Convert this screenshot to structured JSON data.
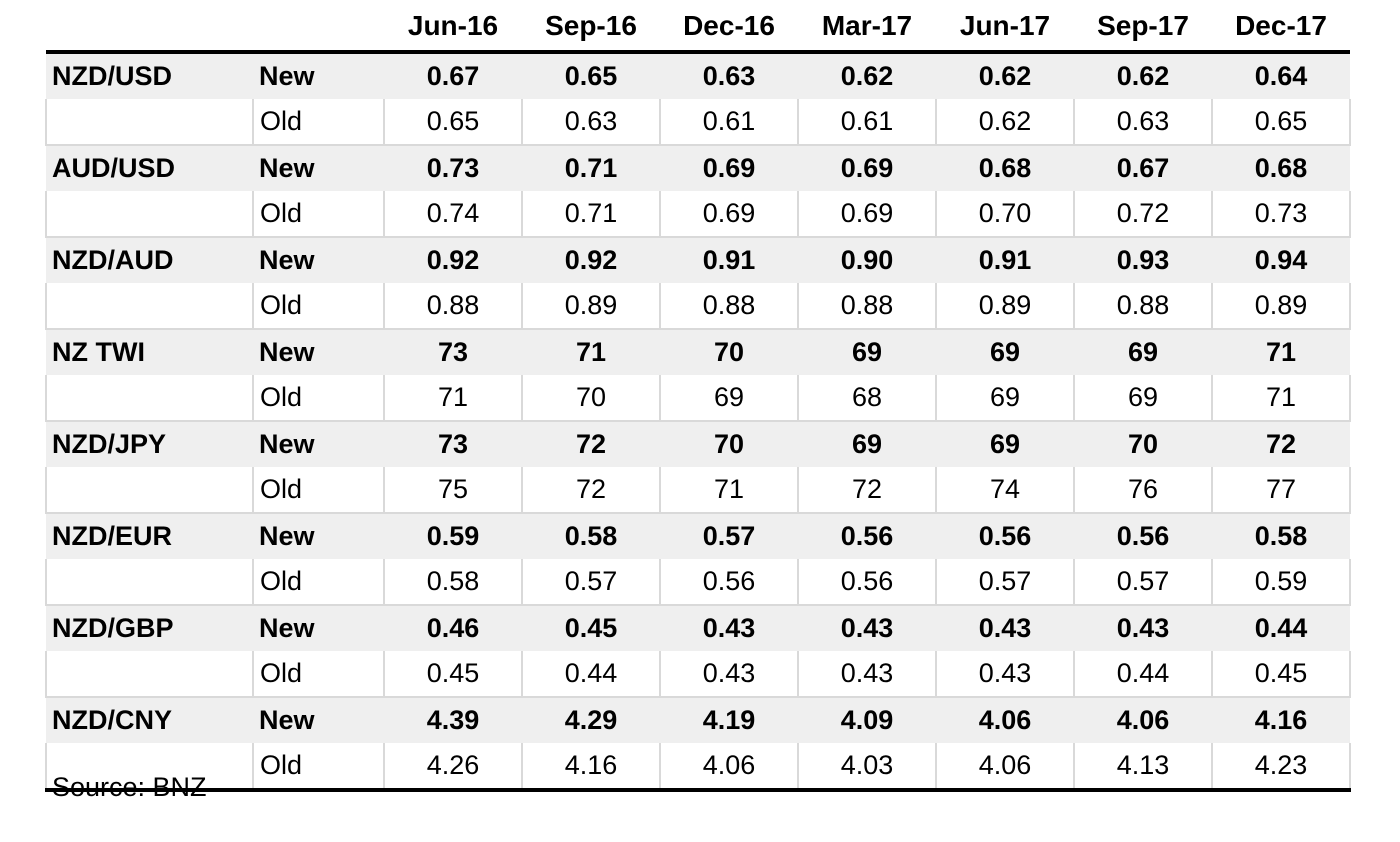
{
  "chart_data": {
    "type": "table",
    "title": "",
    "columns": [
      "Jun-16",
      "Sep-16",
      "Dec-16",
      "Mar-17",
      "Jun-17",
      "Sep-17",
      "Dec-17"
    ],
    "row_type_labels": {
      "new": "New",
      "old": "Old"
    },
    "row_groups": [
      {
        "label": "NZD/USD",
        "new": [
          "0.67",
          "0.65",
          "0.63",
          "0.62",
          "0.62",
          "0.62",
          "0.64"
        ],
        "old": [
          "0.65",
          "0.63",
          "0.61",
          "0.61",
          "0.62",
          "0.63",
          "0.65"
        ]
      },
      {
        "label": "AUD/USD",
        "new": [
          "0.73",
          "0.71",
          "0.69",
          "0.69",
          "0.68",
          "0.67",
          "0.68"
        ],
        "old": [
          "0.74",
          "0.71",
          "0.69",
          "0.69",
          "0.70",
          "0.72",
          "0.73"
        ]
      },
      {
        "label": "NZD/AUD",
        "new": [
          "0.92",
          "0.92",
          "0.91",
          "0.90",
          "0.91",
          "0.93",
          "0.94"
        ],
        "old": [
          "0.88",
          "0.89",
          "0.88",
          "0.88",
          "0.89",
          "0.88",
          "0.89"
        ]
      },
      {
        "label": "NZ TWI",
        "new": [
          "73",
          "71",
          "70",
          "69",
          "69",
          "69",
          "71"
        ],
        "old": [
          "71",
          "70",
          "69",
          "68",
          "69",
          "69",
          "71"
        ]
      },
      {
        "label": "NZD/JPY",
        "new": [
          "73",
          "72",
          "70",
          "69",
          "69",
          "70",
          "72"
        ],
        "old": [
          "75",
          "72",
          "71",
          "72",
          "74",
          "76",
          "77"
        ]
      },
      {
        "label": "NZD/EUR",
        "new": [
          "0.59",
          "0.58",
          "0.57",
          "0.56",
          "0.56",
          "0.56",
          "0.58"
        ],
        "old": [
          "0.58",
          "0.57",
          "0.56",
          "0.56",
          "0.57",
          "0.57",
          "0.59"
        ]
      },
      {
        "label": "NZD/GBP",
        "new": [
          "0.46",
          "0.45",
          "0.43",
          "0.43",
          "0.43",
          "0.43",
          "0.44"
        ],
        "old": [
          "0.45",
          "0.44",
          "0.43",
          "0.43",
          "0.43",
          "0.44",
          "0.45"
        ]
      },
      {
        "label": "NZD/CNY",
        "new": [
          "4.39",
          "4.29",
          "4.19",
          "4.09",
          "4.06",
          "4.06",
          "4.16"
        ],
        "old": [
          "4.26",
          "4.16",
          "4.06",
          "4.03",
          "4.06",
          "4.13",
          "4.23"
        ]
      }
    ],
    "source": "Source: BNZ",
    "layout": {
      "grid": "off",
      "legend": "none",
      "new_row_shade": "#efefef",
      "gridline_gray": "#d9d9d9",
      "rule_black": "#000000"
    }
  }
}
